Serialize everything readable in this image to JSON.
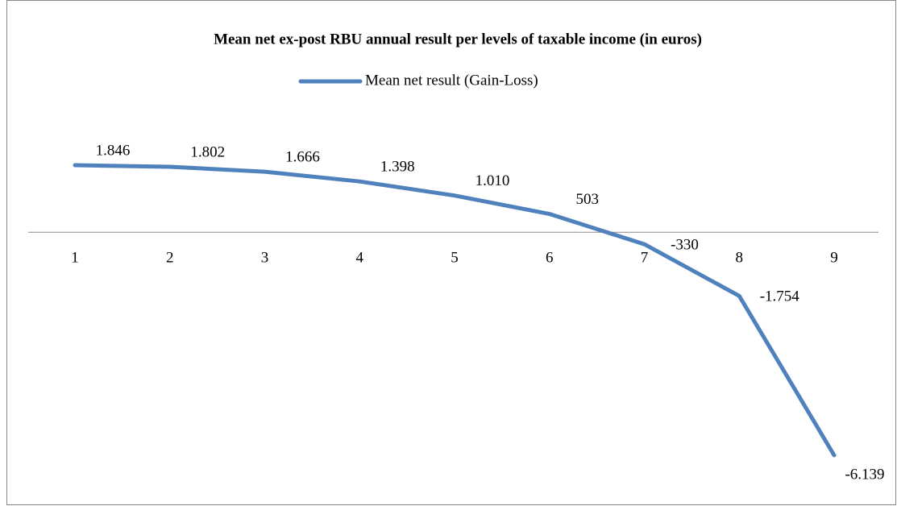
{
  "chart_data": {
    "type": "line",
    "title": "Mean net ex-post RBU annual result per levels of taxable income  (in euros)",
    "categories": [
      "1",
      "2",
      "3",
      "4",
      "5",
      "6",
      "7",
      "8",
      "9"
    ],
    "series": [
      {
        "name": "Mean net result (Gain-Loss)",
        "color": "#4f81bd",
        "values": [
          1846,
          1802,
          1666,
          1398,
          1010,
          503,
          -330,
          -1754,
          -6139
        ],
        "value_labels": [
          "1.846",
          "1.802",
          "1.666",
          "1.398",
          "1.010",
          "503",
          "-330",
          "-1.754",
          "-6.139"
        ]
      }
    ],
    "legend": "top"
  }
}
